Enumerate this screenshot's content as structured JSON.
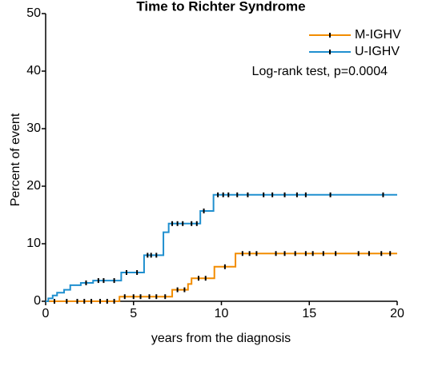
{
  "chart_data": {
    "type": "step",
    "title": "Time to Richter Syndrome",
    "xlabel": "years from the diagnosis",
    "ylabel": "Percent of event",
    "annotation": "Log-rank test, p=0.0004",
    "xlim": [
      0,
      20
    ],
    "xticks": [
      0,
      5,
      10,
      15,
      20
    ],
    "ylim": [
      0,
      50
    ],
    "yticks": [
      0,
      10,
      20,
      30,
      40,
      50
    ],
    "legend": "upper right",
    "series": [
      {
        "name": "M-IGHV",
        "color": "#f28c00",
        "x": [
          0,
          4.2,
          7.2,
          8.1,
          8.3,
          9.6,
          10.8,
          20
        ],
        "values": [
          0,
          0.8,
          2,
          3,
          4,
          6,
          8.3,
          8.3
        ],
        "censored": [
          0.5,
          1.2,
          1.8,
          2.2,
          2.6,
          3.1,
          3.5,
          3.9,
          4.5,
          5.0,
          5.4,
          5.9,
          6.3,
          6.8,
          7.5,
          7.9,
          8.7,
          9.1,
          10.2,
          11.2,
          11.6,
          12.0,
          13.1,
          13.6,
          14.2,
          14.8,
          15.2,
          15.8,
          16.5,
          17.8,
          18.4,
          19.1,
          19.6
        ]
      },
      {
        "name": "U-IGHV",
        "color": "#1f8fcf",
        "x": [
          0,
          0.15,
          0.4,
          0.65,
          1.05,
          1.4,
          2.0,
          2.7,
          4.3,
          5.6,
          6.7,
          7.0,
          8.8,
          9.55,
          20
        ],
        "values": [
          0,
          0.5,
          1,
          1.5,
          2,
          2.8,
          3.2,
          3.6,
          5,
          8,
          12,
          13.5,
          15.7,
          18.5,
          18.5
        ],
        "censored": [
          2.3,
          3.0,
          3.3,
          3.9,
          4.6,
          5.2,
          5.8,
          6.0,
          6.3,
          7.2,
          7.5,
          7.8,
          8.3,
          8.6,
          9.0,
          9.8,
          10.1,
          10.4,
          10.9,
          11.5,
          12.4,
          12.9,
          13.6,
          14.3,
          14.8,
          16.2,
          19.2
        ]
      }
    ]
  }
}
